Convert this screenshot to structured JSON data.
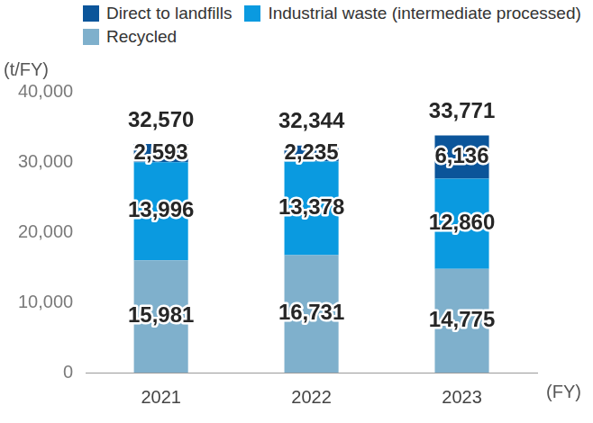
{
  "chart_data": {
    "type": "bar",
    "stacked": true,
    "y_label": "(t/FY)",
    "x_label": "(FY)",
    "categories": [
      "2021",
      "2022",
      "2023"
    ],
    "series": [
      {
        "name": "Direct to landfills",
        "color": "#0b559a",
        "values": [
          2593,
          2235,
          6136
        ],
        "value_labels": [
          "2,593",
          "2,235",
          "6,136"
        ]
      },
      {
        "name": "Industrial waste (intermediate processed)",
        "color": "#0a9ae0",
        "values": [
          13996,
          13378,
          12860
        ],
        "value_labels": [
          "13,996",
          "13,378",
          "12,860"
        ]
      },
      {
        "name": "Recycled",
        "color": "#7fb0cc",
        "values": [
          15981,
          16731,
          14775
        ],
        "value_labels": [
          "15,981",
          "16,731",
          "14,775"
        ]
      }
    ],
    "totals": [
      32570,
      32344,
      33771
    ],
    "total_labels": [
      "32,570",
      "32,344",
      "33,771"
    ],
    "ylim": [
      0,
      40000
    ],
    "yticks": [
      0,
      {
        "value": 10000,
        "label": "10,000"
      },
      {
        "value": 20000,
        "label": "20,000"
      },
      {
        "value": 30000,
        "label": "30,000"
      },
      {
        "value": 40000,
        "label": "40,000"
      }
    ],
    "grid": false,
    "legend": "top-left",
    "data_labels": true
  }
}
